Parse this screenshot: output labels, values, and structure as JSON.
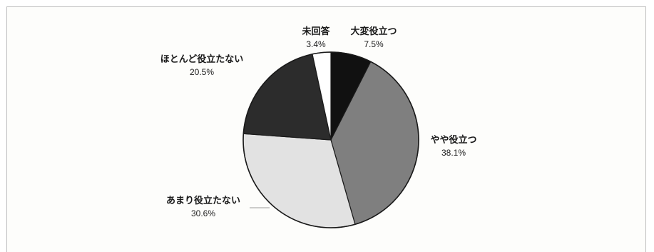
{
  "chart_data": {
    "type": "pie",
    "title": "",
    "start_angle_deg": 0,
    "direction": "clockwise",
    "slices": [
      {
        "label": "大変役立つ",
        "value": 7.5,
        "value_label": "7.5%",
        "color": "#111111"
      },
      {
        "label": "やや役立つ",
        "value": 38.1,
        "value_label": "38.1%",
        "color": "#7f7f7f"
      },
      {
        "label": "あまり役立たない",
        "value": 30.6,
        "value_label": "30.6%",
        "color": "#e2e2e2"
      },
      {
        "label": "ほとんど役立たない",
        "value": 20.5,
        "value_label": "20.5%",
        "color": "#2c2c2c"
      },
      {
        "label": "未回答",
        "value": 3.4,
        "value_label": "3.4%",
        "color": "#ffffff"
      }
    ],
    "legend": "none"
  }
}
